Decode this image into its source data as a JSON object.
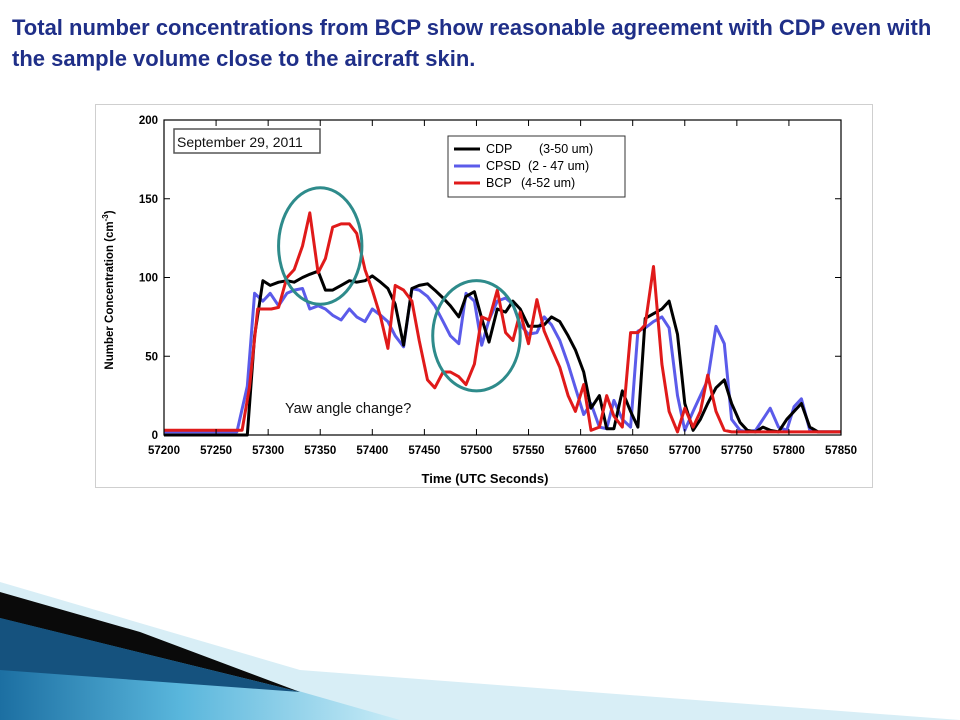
{
  "slide": {
    "title": "Total number concentrations from BCP show reasonable agreement with CDP even with the sample volume close to the aircraft skin."
  },
  "colors": {
    "title": "#1f2f88",
    "cdp": "#000000",
    "cpsd": "#5b5bea",
    "bcp": "#e01a1a",
    "ellipse": "#2e8b8b"
  },
  "chart_data": {
    "type": "line",
    "date_label": "September 29, 2011",
    "xlabel": "Time (UTC Seconds)",
    "ylabel": "Number Concentration (cm",
    "ylabel_sup": "-3",
    "ylabel_close": ")",
    "xlim": [
      57200,
      57850
    ],
    "ylim": [
      0,
      200
    ],
    "xticks": [
      57200,
      57250,
      57300,
      57350,
      57400,
      57450,
      57500,
      57550,
      57600,
      57650,
      57700,
      57750,
      57800,
      57850
    ],
    "yticks": [
      0,
      50,
      100,
      150,
      200
    ],
    "grid": false,
    "legend_position": "top-right",
    "annotation": "Yaw angle change?",
    "highlight_regions": [
      {
        "center": [
          57350,
          120
        ],
        "radii": [
          40,
          37
        ]
      },
      {
        "center": [
          57500,
          63
        ],
        "radii": [
          42,
          35
        ]
      }
    ],
    "series": [
      {
        "name": "CDP",
        "range": "(3-50 um)",
        "color": "#000000",
        "x": [
          57200,
          57280,
          57287,
          57295,
          57302,
          57310,
          57318,
          57325,
          57333,
          57340,
          57348,
          57355,
          57362,
          57370,
          57378,
          57385,
          57393,
          57400,
          57408,
          57415,
          57422,
          57430,
          57438,
          57445,
          57453,
          57460,
          57468,
          57475,
          57483,
          57490,
          57498,
          57505,
          57512,
          57520,
          57528,
          57535,
          57542,
          57550,
          57558,
          57565,
          57572,
          57580,
          57588,
          57595,
          57603,
          57610,
          57618,
          57625,
          57632,
          57640,
          57648,
          57655,
          57662,
          57670,
          57678,
          57685,
          57693,
          57700,
          57708,
          57715,
          57722,
          57730,
          57738,
          57745,
          57753,
          57760,
          57768,
          57775,
          57782,
          57790,
          57798,
          57805,
          57812,
          57820,
          57828,
          57835,
          57850
        ],
        "y": [
          0,
          0,
          63,
          98,
          95,
          97,
          98,
          97,
          100,
          102,
          104,
          92,
          92,
          95,
          98,
          97,
          98,
          101,
          97,
          93,
          83,
          57,
          93,
          95,
          96,
          92,
          87,
          82,
          75,
          88,
          91,
          74,
          59,
          80,
          78,
          85,
          80,
          69,
          69,
          70,
          75,
          72,
          63,
          54,
          40,
          17,
          25,
          4,
          4,
          28,
          15,
          5,
          74,
          77,
          80,
          85,
          64,
          20,
          3,
          10,
          20,
          30,
          35,
          20,
          8,
          3,
          2,
          5,
          3,
          2,
          10,
          15,
          20,
          5,
          2,
          2,
          2
        ]
      },
      {
        "name": "CPSD",
        "range": "(2 - 47 um)",
        "color": "#5b5bea",
        "x": [
          57200,
          57270,
          57280,
          57287,
          57295,
          57302,
          57310,
          57318,
          57325,
          57333,
          57340,
          57348,
          57355,
          57362,
          57370,
          57378,
          57385,
          57393,
          57400,
          57408,
          57415,
          57422,
          57430,
          57438,
          57445,
          57453,
          57460,
          57468,
          57475,
          57483,
          57490,
          57498,
          57505,
          57512,
          57520,
          57528,
          57535,
          57542,
          57550,
          57558,
          57565,
          57572,
          57580,
          57588,
          57595,
          57603,
          57610,
          57618,
          57625,
          57632,
          57640,
          57648,
          57655,
          57662,
          57670,
          57678,
          57685,
          57693,
          57700,
          57708,
          57715,
          57722,
          57730,
          57738,
          57745,
          57753,
          57760,
          57768,
          57775,
          57782,
          57790,
          57798,
          57805,
          57812,
          57820,
          57828,
          57835,
          57850
        ],
        "y": [
          2,
          2,
          31,
          90,
          85,
          90,
          82,
          90,
          92,
          93,
          80,
          82,
          80,
          76,
          73,
          80,
          75,
          72,
          80,
          76,
          72,
          63,
          56,
          93,
          92,
          88,
          82,
          72,
          63,
          58,
          90,
          85,
          57,
          73,
          85,
          87,
          83,
          70,
          64,
          65,
          75,
          70,
          60,
          45,
          30,
          13,
          20,
          5,
          4,
          22,
          10,
          5,
          66,
          68,
          72,
          75,
          68,
          25,
          3,
          15,
          25,
          35,
          69,
          58,
          10,
          3,
          2,
          3,
          10,
          17,
          5,
          3,
          18,
          23,
          3,
          2,
          2,
          2
        ]
      },
      {
        "name": "BCP",
        "range": "(4-52 um)",
        "color": "#e01a1a",
        "x": [
          57200,
          57275,
          57282,
          57290,
          57297,
          57303,
          57310,
          57318,
          57325,
          57333,
          57340,
          57348,
          57355,
          57362,
          57370,
          57378,
          57385,
          57393,
          57400,
          57408,
          57415,
          57422,
          57430,
          57438,
          57445,
          57453,
          57460,
          57468,
          57475,
          57483,
          57490,
          57498,
          57505,
          57512,
          57520,
          57528,
          57535,
          57542,
          57550,
          57558,
          57565,
          57572,
          57580,
          57588,
          57595,
          57603,
          57610,
          57618,
          57625,
          57632,
          57640,
          57648,
          57655,
          57662,
          57670,
          57678,
          57685,
          57693,
          57700,
          57708,
          57715,
          57722,
          57730,
          57738,
          57745,
          57753,
          57760,
          57850
        ],
        "y": [
          3,
          3,
          30,
          80,
          80,
          80,
          81,
          100,
          105,
          120,
          141,
          103,
          112,
          132,
          134,
          134,
          128,
          105,
          92,
          75,
          55,
          95,
          92,
          85,
          60,
          35,
          30,
          40,
          40,
          37,
          32,
          45,
          75,
          73,
          92,
          65,
          60,
          78,
          58,
          86,
          66,
          55,
          43,
          25,
          15,
          32,
          3,
          5,
          25,
          12,
          5,
          65,
          65,
          70,
          107,
          45,
          15,
          2,
          17,
          5,
          15,
          38,
          15,
          3,
          2,
          2,
          2,
          2
        ]
      }
    ]
  }
}
